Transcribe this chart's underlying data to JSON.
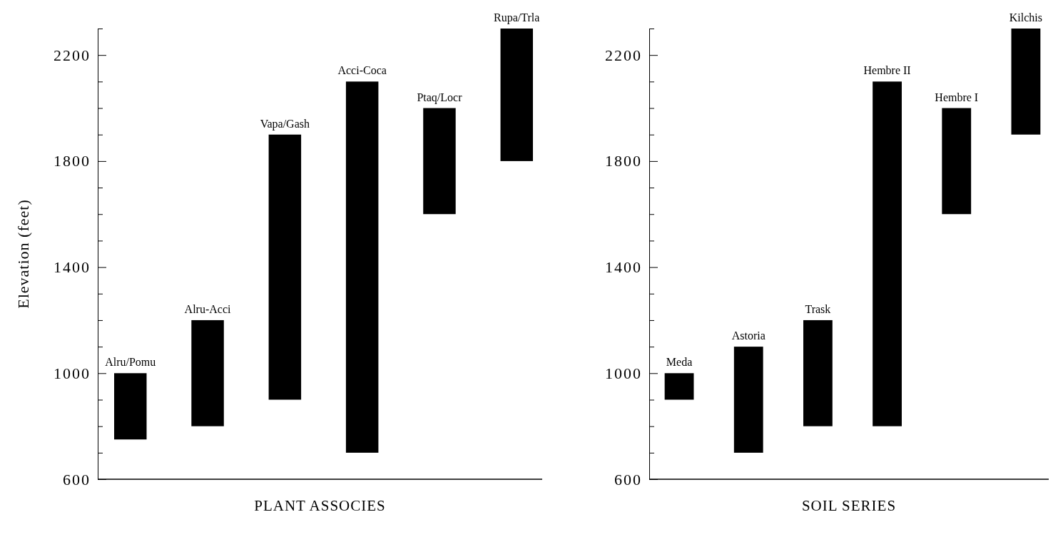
{
  "chart_data": [
    {
      "type": "bar",
      "xlabel": "PLANT ASSOCIES",
      "ylabel": "Elevation (feet)",
      "categories": [
        "Alru/Pomu",
        "Alru-Acci",
        "Vapa/Gash",
        "Acci-Coca",
        "Ptaq/Locr",
        "Rupa/Trla"
      ],
      "series": [
        {
          "color": "#000000",
          "values": [
            250,
            400,
            1000,
            1400,
            400,
            500
          ],
          "base": [
            750,
            800,
            900,
            700,
            1600,
            1800
          ]
        }
      ],
      "ylim": [
        600,
        2300
      ],
      "yticks": [
        600,
        {
          "value": 700,
          "label": null
        },
        {
          "value": 800,
          "label": null
        },
        {
          "value": 900,
          "label": null
        },
        1000,
        {
          "value": 1100,
          "label": null
        },
        {
          "value": 1200,
          "label": null
        },
        {
          "value": 1300,
          "label": null
        },
        1400,
        {
          "value": 1500,
          "label": null
        },
        {
          "value": 1600,
          "label": null
        },
        {
          "value": 1700,
          "label": null
        },
        1800,
        {
          "value": 1900,
          "label": null
        },
        {
          "value": 2000,
          "label": null
        },
        {
          "value": 2100,
          "label": null
        },
        2200,
        {
          "value": 2300,
          "label": null
        }
      ],
      "grid": false
    },
    {
      "type": "bar",
      "xlabel": "SOIL SERIES",
      "categories": [
        "Meda",
        "Astoria",
        "Trask",
        "Hembre II",
        "Hembre I",
        "Kilchis"
      ],
      "series": [
        {
          "color": "#000000",
          "values": [
            100,
            400,
            400,
            1300,
            400,
            400
          ],
          "base": [
            900,
            700,
            800,
            800,
            1600,
            1900
          ]
        }
      ],
      "ylim": [
        600,
        2300
      ],
      "yticks": [
        600,
        {
          "value": 700,
          "label": null
        },
        {
          "value": 800,
          "label": null
        },
        {
          "value": 900,
          "label": null
        },
        1000,
        {
          "value": 1100,
          "label": null
        },
        {
          "value": 1200,
          "label": null
        },
        {
          "value": 1300,
          "label": null
        },
        1400,
        {
          "value": 1500,
          "label": null
        },
        {
          "value": 1600,
          "label": null
        },
        {
          "value": 1700,
          "label": null
        },
        1800,
        {
          "value": 1900,
          "label": null
        },
        {
          "value": 2000,
          "label": null
        },
        {
          "value": 2100,
          "label": null
        },
        2200,
        {
          "value": 2300,
          "label": null
        }
      ],
      "grid": false
    }
  ]
}
